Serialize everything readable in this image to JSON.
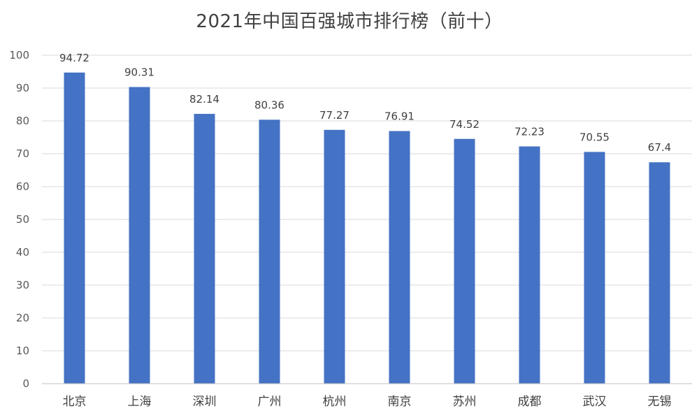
{
  "chart_data": {
    "type": "bar",
    "title": "2021年中国百强城市排行榜（前十）",
    "categories": [
      "北京",
      "上海",
      "深圳",
      "广州",
      "杭州",
      "南京",
      "苏州",
      "成都",
      "武汉",
      "无锡"
    ],
    "values": [
      94.72,
      90.31,
      82.14,
      80.36,
      77.27,
      76.91,
      74.52,
      72.23,
      70.55,
      67.4
    ],
    "data_labels": [
      "94.72",
      "90.31",
      "82.14",
      "80.36",
      "77.27",
      "76.91",
      "74.52",
      "72.23",
      "70.55",
      "67.4"
    ],
    "y_ticks": [
      "0",
      "10",
      "20",
      "30",
      "40",
      "50",
      "60",
      "70",
      "80",
      "90",
      "100"
    ],
    "ylim": [
      0,
      100
    ],
    "y_step": 10,
    "xlabel": "",
    "ylabel": "",
    "grid": true,
    "legend": "none",
    "colors": {
      "bar": "#4472C4",
      "grid": "#D9D9D9",
      "axis": "#BFBFBF",
      "text": "#404040"
    }
  }
}
